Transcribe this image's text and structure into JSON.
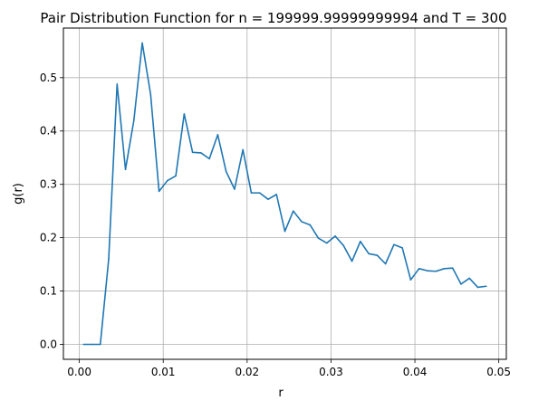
{
  "chart_data": {
    "type": "line",
    "title": "Pair Distribution Function for n = 199999.99999999994 and T = 300",
    "xlabel": "r",
    "ylabel": "g(r)",
    "xlim": [
      -0.0019,
      0.0509
    ],
    "ylim": [
      -0.028,
      0.593
    ],
    "grid": true,
    "x_ticks": [
      {
        "value": 0.0,
        "label": "0.00"
      },
      {
        "value": 0.01,
        "label": "0.01"
      },
      {
        "value": 0.02,
        "label": "0.02"
      },
      {
        "value": 0.03,
        "label": "0.03"
      },
      {
        "value": 0.04,
        "label": "0.04"
      },
      {
        "value": 0.05,
        "label": "0.05"
      }
    ],
    "y_ticks": [
      {
        "value": 0.0,
        "label": "0.0"
      },
      {
        "value": 0.1,
        "label": "0.1"
      },
      {
        "value": 0.2,
        "label": "0.2"
      },
      {
        "value": 0.3,
        "label": "0.3"
      },
      {
        "value": 0.4,
        "label": "0.4"
      },
      {
        "value": 0.5,
        "label": "0.5"
      }
    ],
    "series": [
      {
        "color": "#1f77b4",
        "x": [
          0.0005,
          0.0015,
          0.0025,
          0.0035,
          0.0045,
          0.0055,
          0.0065,
          0.0075,
          0.0085,
          0.0095,
          0.0105,
          0.0115,
          0.0125,
          0.0135,
          0.0145,
          0.0155,
          0.0165,
          0.0175,
          0.0185,
          0.0195,
          0.0205,
          0.0215,
          0.0225,
          0.0235,
          0.0245,
          0.0255,
          0.0265,
          0.0275,
          0.0285,
          0.0295,
          0.0305,
          0.0315,
          0.0325,
          0.0335,
          0.0345,
          0.0355,
          0.0365,
          0.0375,
          0.0385,
          0.0395,
          0.0405,
          0.0415,
          0.0425,
          0.0435,
          0.0445,
          0.0455,
          0.0465,
          0.0475,
          0.0485
        ],
        "y": [
          0.0,
          0.0,
          0.0,
          0.16,
          0.488,
          0.328,
          0.42,
          0.565,
          0.468,
          0.287,
          0.307,
          0.316,
          0.432,
          0.36,
          0.359,
          0.348,
          0.393,
          0.324,
          0.291,
          0.365,
          0.284,
          0.284,
          0.272,
          0.281,
          0.212,
          0.25,
          0.23,
          0.224,
          0.199,
          0.19,
          0.203,
          0.185,
          0.156,
          0.193,
          0.17,
          0.167,
          0.151,
          0.187,
          0.181,
          0.121,
          0.142,
          0.138,
          0.137,
          0.142,
          0.143,
          0.113,
          0.124,
          0.107,
          0.109
        ]
      }
    ]
  }
}
